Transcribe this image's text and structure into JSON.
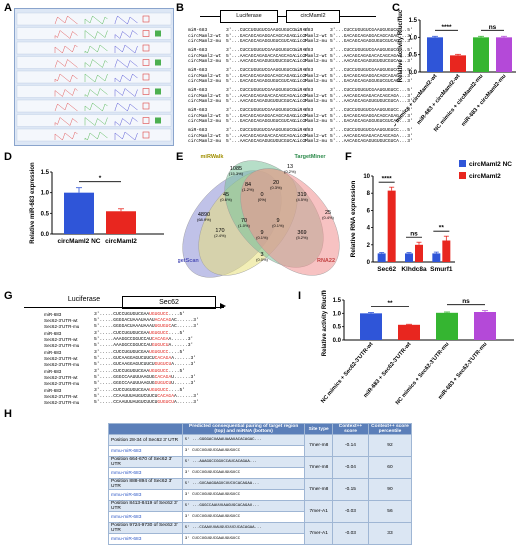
{
  "panel_labels": [
    "A",
    "B",
    "C",
    "D",
    "E",
    "F",
    "G",
    "H",
    "I"
  ],
  "panel_b": {
    "luciferase": "Luciferase",
    "circ": "circMaml2",
    "groups": [
      {
        "rows": [
          {
            "name": "miR-683",
            "seq": "3'...CUCCUGUGUCGAAUGUGUCC...5'"
          },
          {
            "name": "circMaml2-wt",
            "seq": "5'...GACAGCAGAGGACAGCAGAG...3'"
          },
          {
            "name": "circMaml2-mu",
            "seq": "5'...GACAGCAGAGGUGUCGUCAG...3'"
          }
        ]
      },
      {
        "rows": [
          {
            "name": "miR-683",
            "seq": "3'...CUCCUGUGUCGAAUGUGUCC...5'"
          },
          {
            "name": "circMaml2-wt",
            "seq": "5'...AACAGCAGAGACACAGCAGA...3'"
          },
          {
            "name": "circMaml2-mu",
            "seq": "5'...AACAGCAGAGUGUGUCGUCA...3'"
          }
        ]
      },
      {
        "rows": [
          {
            "name": "miR-683",
            "seq": "3'...CUCCUGUGUCGAAUGUGUCC...5'"
          },
          {
            "name": "circMaml2-wt",
            "seq": "5'...GACAGCAGAGGACAGCAGAG...3'"
          },
          {
            "name": "circMaml2-mu",
            "seq": "5'...GACAGCAGAGGUGUCGUCAG...3'"
          }
        ]
      },
      {
        "rows": [
          {
            "name": "miR-683",
            "seq": "3'...CUCCUGUGUCGAAUGUGUCC...5'"
          },
          {
            "name": "circMaml2-wt",
            "seq": "5'...AACAGCAGAGACACAGCAGA...3'"
          },
          {
            "name": "circMaml2-mu",
            "seq": "5'...AACAGCAGAGUGUGUCGUCA...3'"
          }
        ]
      },
      {
        "rows": [
          {
            "name": "miR-683",
            "seq": "3'...CUCCUGUGUCGAAUGUGUCC...5'"
          },
          {
            "name": "circMaml2-wt",
            "seq": "5'...GACAGCAGAGGACAGCAGAG...3'"
          },
          {
            "name": "circMaml2-mu",
            "seq": "5'...GACAGCAGAGGUGUCGUCAG...3'"
          }
        ]
      },
      {
        "rows": [
          {
            "name": "miR-683",
            "seq": "3'...CUCCUGUGUCGAAUGUGUCC...5'"
          },
          {
            "name": "circMaml2-wt",
            "seq": "5'...AACAGCAGAGACACAGCAGA...3'"
          },
          {
            "name": "circMaml2-mu",
            "seq": "5'...AACAGCAGAGUGUGUCGUCA...3'"
          }
        ]
      }
    ]
  },
  "chart_data": [
    {
      "panel": "C",
      "type": "bar",
      "ylabel": "Relative activity Rluc/fluc",
      "ylim": [
        0,
        1.5
      ],
      "yticks": [
        "0.0",
        "0.5",
        "1.0",
        "1.5"
      ],
      "categories": [
        "NC mimics + circMaml2-wt",
        "miR-683 + circMaml2-wt",
        "NC mimics + circMaml2-mu",
        "miR-683 + circMaml2-mu"
      ],
      "values": [
        1.0,
        0.48,
        1.0,
        1.0
      ],
      "errors": [
        0.03,
        0.03,
        0.03,
        0.03
      ],
      "colors": [
        "#2f55d8",
        "#e8261f",
        "#35b531",
        "#b449d8"
      ],
      "significance": [
        {
          "from": 0,
          "to": 1,
          "label": "****"
        },
        {
          "from": 2,
          "to": 3,
          "label": "ns"
        }
      ]
    },
    {
      "panel": "D",
      "type": "bar",
      "ylabel": "Relative miR-683 expression",
      "ylim": [
        0,
        1.5
      ],
      "yticks": [
        "0.0",
        "0.5",
        "1.0",
        "1.5"
      ],
      "categories": [
        "circMaml2 NC",
        "circMaml2"
      ],
      "values": [
        1.0,
        0.55
      ],
      "errors": [
        0.12,
        0.06
      ],
      "colors": [
        "#2f55d8",
        "#e8261f"
      ],
      "significance": [
        {
          "from": 0,
          "to": 1,
          "label": "*"
        }
      ]
    },
    {
      "panel": "F",
      "type": "bar",
      "ylabel": "Relative RNA expression",
      "ylim": [
        0,
        10
      ],
      "yticks": [
        "0",
        "2",
        "4",
        "6",
        "8",
        "10"
      ],
      "categories": [
        "Sec62",
        "Klhdc8a",
        "Smurf1"
      ],
      "series": [
        {
          "name": "circMaml2 NC",
          "color": "#2f55d8",
          "values": [
            1.0,
            1.0,
            1.0
          ],
          "errors": [
            0.1,
            0.1,
            0.15
          ]
        },
        {
          "name": "circMaml2",
          "color": "#e8261f",
          "values": [
            8.3,
            2.0,
            2.5
          ],
          "errors": [
            0.4,
            0.3,
            0.5
          ]
        }
      ],
      "significance": [
        {
          "cat": 0,
          "label": "****"
        },
        {
          "cat": 1,
          "label": "ns"
        },
        {
          "cat": 2,
          "label": "**"
        }
      ]
    },
    {
      "panel": "I",
      "type": "bar",
      "ylabel": "Relative activity Rluc/fluc",
      "ylim": [
        0,
        1.5
      ],
      "yticks": [
        "0.0",
        "0.5",
        "1.0",
        "1.5"
      ],
      "categories": [
        "NC mimics + Sec62-3'UTR-wt",
        "miR-683 + Sec62-3'UTR-wt",
        "NC mimics + Sec62-3'UTR-mu",
        "miR-683 + Sec62-3'UTR-mu"
      ],
      "values": [
        1.0,
        0.57,
        1.02,
        1.05
      ],
      "errors": [
        0.03,
        0.02,
        0.03,
        0.05
      ],
      "colors": [
        "#2f55d8",
        "#e8261f",
        "#35b531",
        "#b449d8"
      ],
      "significance": [
        {
          "from": 0,
          "to": 1,
          "label": "**"
        },
        {
          "from": 2,
          "to": 3,
          "label": "ns"
        }
      ]
    }
  ],
  "panel_e": {
    "set_labels": [
      "miRWalk",
      "TargetMiner",
      "TargetScan",
      "RNA22"
    ],
    "colors": [
      "#e8e07a",
      "#7ac29a",
      "#8d8fd6",
      "#f08f8f"
    ],
    "regions": [
      {
        "n": "1085",
        "p": "15.3%"
      },
      {
        "n": "13",
        "p": "0.2%"
      },
      {
        "n": "4890",
        "p": "68.9%"
      },
      {
        "n": "25",
        "p": "0.4%"
      },
      {
        "n": "84",
        "p": "1.2%"
      },
      {
        "n": "20",
        "p": "0.3%"
      },
      {
        "n": "0",
        "p": "0%"
      },
      {
        "n": "45",
        "p": "0.6%"
      },
      {
        "n": "319",
        "p": "4.5%"
      },
      {
        "n": "70",
        "p": "1.0%"
      },
      {
        "n": "9",
        "p": "0.1%"
      },
      {
        "n": "170",
        "p": "2.4%"
      },
      {
        "n": "9",
        "p": "0.1%"
      },
      {
        "n": "369",
        "p": "5.2%"
      },
      {
        "n": "3",
        "p": "0.0%"
      }
    ]
  },
  "panel_g": {
    "luciferase": "Luciferase",
    "gene": "Sec62",
    "groups": [
      {
        "rows": [
          {
            "name": "miR-683",
            "a": "3'.....CUCCUGUGUCGAA",
            "b": "UGUGUCC",
            "c": "....5'"
          },
          {
            "name": "Sec62-3'UTR-wt",
            "a": "5'.....GGGGACUAAAUAAAU",
            "b": "ACACAG",
            "c": "AC......3'"
          },
          {
            "name": "Sec62-3'UTR-mu",
            "a": "5'.....GGGGACUAAAUAAAU",
            "b": "UGUGUC",
            "c": "AC......3'"
          }
        ]
      },
      {
        "rows": [
          {
            "name": "miR-683",
            "a": "3'.....CUCCUGUGUCGAA",
            "b": "UGUGUCC",
            "c": "....5'"
          },
          {
            "name": "Sec62-3'UTR-wt",
            "a": "5'.....AAAGGCCGGUCCAU",
            "b": "CACAGA",
            "c": "A......3'"
          },
          {
            "name": "Sec62-3'UTR-mu",
            "a": "5'.....AAAGGCCGGUCCAU",
            "b": "GUGUCU",
            "c": "A......3'"
          }
        ]
      },
      {
        "rows": [
          {
            "name": "miR-683",
            "a": "3'.....CUCCUGUGUCGAA",
            "b": "UGUGUCC",
            "c": "....5'"
          },
          {
            "name": "Sec62-3'UTR-wt",
            "a": "5'.....GUCAAGGAGUCUUCU",
            "b": "CACAGA",
            "c": "A......3'"
          },
          {
            "name": "Sec62-3'UTR-mu",
            "a": "5'.....GUCAAGGAGUCUUCU",
            "b": "GUGUCU",
            "c": "A......3'"
          }
        ]
      },
      {
        "rows": [
          {
            "name": "miR-683",
            "a": "3'.....CUCCUGUGUCGAA",
            "b": "UGUGUCC",
            "c": "....5'"
          },
          {
            "name": "Sec62-3'UTR-wt",
            "a": "5'.....GGGCCAAUUUAAGUG",
            "b": "CACAGA",
            "c": "U......3'"
          },
          {
            "name": "Sec62-3'UTR-mu",
            "a": "5'.....GGGCCAAUUUAAGUG",
            "b": "GUGUCU",
            "c": "U......3'"
          }
        ]
      },
      {
        "rows": [
          {
            "name": "miR-683",
            "a": "3'.....CUCCUGUGUCGAA",
            "b": "UGUGUCC",
            "c": "....5'"
          },
          {
            "name": "Sec62-3'UTR-wt",
            "a": "5'.....CCAAUUUAUGUCUUCU",
            "b": "CACAGA",
            "c": "A......3'"
          },
          {
            "name": "Sec62-3'UTR-mu",
            "a": "5'.....CCAAUUUAUGUCUUCU",
            "b": "GUGUCU",
            "c": "A......3'"
          }
        ]
      }
    ]
  },
  "panel_h": {
    "headers": [
      "",
      "Predicted consequential pairing of target region (top) and miRNA (bottom)",
      "Site type",
      "Context++ score",
      "Context++ score percentile"
    ],
    "rows": [
      {
        "pos": "Position 28-34 of Sec62 3' UTR",
        "top": "5' ...GGGGACUAAAUAAAUACACAGAC...",
        "mir": "mmu-miR-683",
        "bot": "3' CUCCUGUGUCGAAUGUGUCC",
        "type": "7mer-m8",
        "score": "-0.14",
        "pct": "92"
      },
      {
        "pos": "Position 664-670 of Sec62 3' UTR",
        "top": "5' ...AAAGGCCGGUCCAUCACAGAA...",
        "mir": "mmu-miR-683",
        "bot": "3' CUCCUGUGUCGAAUGUGUCC",
        "type": "7mer-m8",
        "score": "-0.04",
        "pct": "60"
      },
      {
        "pos": "Position 888-894 of Sec62 3' UTR",
        "top": "5' ...GUCAAGGAGUCUUCUCACAGAA...",
        "mir": "mmu-miR-683",
        "bot": "3' CUCCUGUGUCGAAUGUGUCC",
        "type": "7mer-m8",
        "score": "-0.15",
        "pct": "90"
      },
      {
        "pos": "Position 8413-8419 of Sec62 3' UTR",
        "top": "5' ...GGGCCAAUUUAAGUGCACAGAU...",
        "mir": "mmu-miR-683",
        "bot": "3' CUCCUGUGUCGAAUGUGUCC",
        "type": "7mer-A1",
        "score": "-0.03",
        "pct": "56"
      },
      {
        "pos": "Position 9724-9730 of Sec62 3' UTR",
        "top": "5' ...CCAAUUUAUGUCUUCUCACAGAA...",
        "mir": "mmu-miR-683",
        "bot": "3' CUCCUGUGUCGAAUGUGUCC",
        "type": "7mer-A1",
        "score": "-0.03",
        "pct": "33"
      }
    ]
  }
}
